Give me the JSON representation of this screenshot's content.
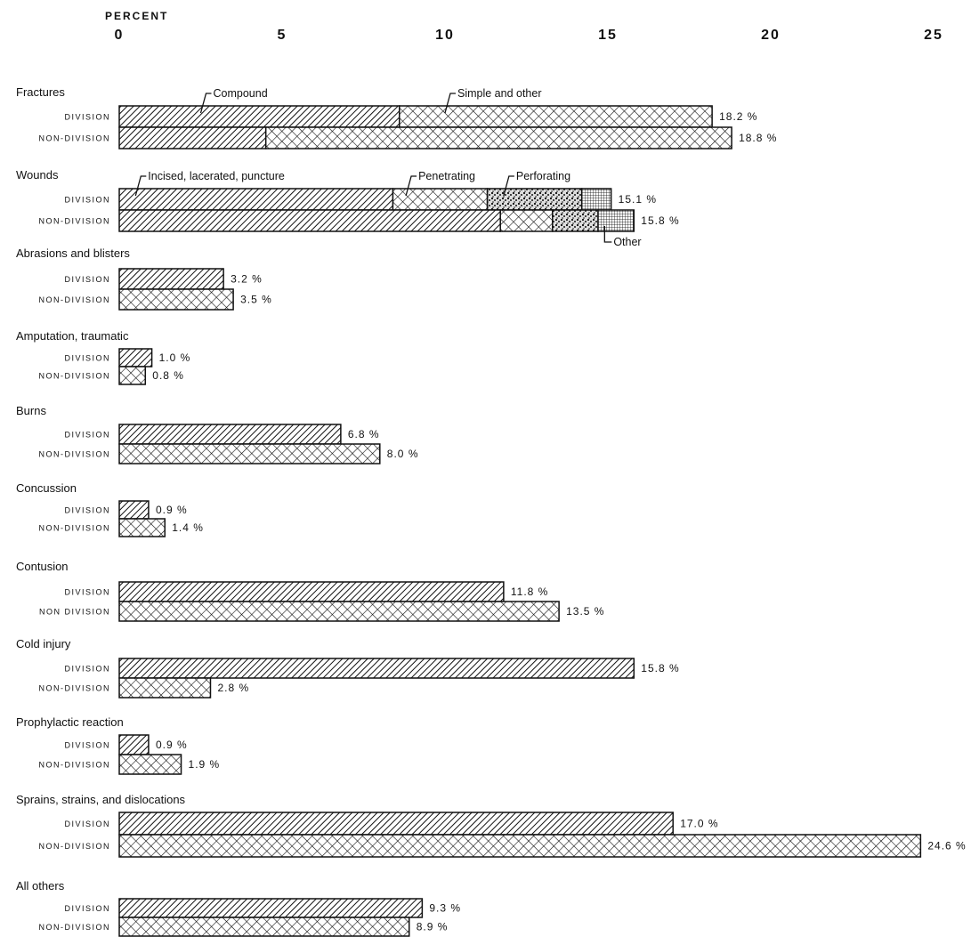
{
  "chart_data": {
    "type": "bar",
    "orientation": "horizontal",
    "stacked_for": [
      "Fractures",
      "Wounds"
    ],
    "axis_title": "PERCENT",
    "xlim": [
      0,
      25
    ],
    "ticks": [
      "0",
      "5",
      "10",
      "15",
      "20",
      "25"
    ],
    "tick_values": [
      0,
      5,
      10,
      15,
      20,
      25
    ],
    "groups": [
      {
        "category": "Fractures",
        "division_label": "DIVISION",
        "non_division_label": "NON-DIVISION",
        "division": 18.2,
        "non_division": 18.8,
        "division_text": "18.2 %",
        "non_division_text": "18.8 %",
        "segment_names": [
          "Compound",
          "Simple and other"
        ],
        "division_segments": [
          8.6,
          9.6
        ],
        "non_division_segments": [
          4.5,
          14.3
        ]
      },
      {
        "category": "Wounds",
        "division_label": "DIVISION",
        "non_division_label": "NON-DIVISION",
        "division": 15.1,
        "non_division": 15.8,
        "division_text": "15.1 %",
        "non_division_text": "15.8 %",
        "segment_names": [
          "Incised, lacerated, puncture",
          "Penetrating",
          "Perforating",
          "Other"
        ],
        "division_segments": [
          8.4,
          2.9,
          2.9,
          0.9
        ],
        "non_division_segments": [
          11.7,
          1.6,
          1.4,
          1.1
        ]
      },
      {
        "category": "Abrasions and blisters",
        "division_label": "DIVISION",
        "non_division_label": "NON-DIVISION",
        "division": 3.2,
        "non_division": 3.5,
        "division_text": "3.2 %",
        "non_division_text": "3.5 %"
      },
      {
        "category": "Amputation, traumatic",
        "division_label": "DIVISION",
        "non_division_label": "NON-DIVISION",
        "division": 1.0,
        "non_division": 0.8,
        "division_text": "1.0 %",
        "non_division_text": "0.8 %"
      },
      {
        "category": "Burns",
        "division_label": "DIVISION",
        "non_division_label": "NON-DIVISION",
        "division": 6.8,
        "non_division": 8.0,
        "division_text": "6.8 %",
        "non_division_text": "8.0 %"
      },
      {
        "category": "Concussion",
        "division_label": "DIVISION",
        "non_division_label": "NON-DIVISION",
        "division": 0.9,
        "non_division": 1.4,
        "division_text": "0.9 %",
        "non_division_text": "1.4 %"
      },
      {
        "category": "Contusion",
        "division_label": "DIVISION",
        "non_division_label": "NON DIVISION",
        "division": 11.8,
        "non_division": 13.5,
        "division_text": "11.8 %",
        "non_division_text": "13.5 %"
      },
      {
        "category": "Cold injury",
        "division_label": "DIVISION",
        "non_division_label": "NON-DIVISION",
        "division": 15.8,
        "non_division": 2.8,
        "division_text": "15.8 %",
        "non_division_text": "2.8 %"
      },
      {
        "category": "Prophylactic reaction",
        "division_label": "DIVISION",
        "non_division_label": "NON-DIVISION",
        "division": 0.9,
        "non_division": 1.9,
        "division_text": "0.9 %",
        "non_division_text": "1.9 %"
      },
      {
        "category": "Sprains, strains, and dislocations",
        "division_label": "DIVISION",
        "non_division_label": "NON-DIVISION",
        "division": 17.0,
        "non_division": 24.6,
        "division_text": "17.0 %",
        "non_division_text": "24.6 %"
      },
      {
        "category": "All others",
        "division_label": "DIVISION",
        "non_division_label": "NON-DIVISION",
        "division": 9.3,
        "non_division": 8.9,
        "division_text": "9.3 %",
        "non_division_text": "8.9 %"
      }
    ]
  }
}
